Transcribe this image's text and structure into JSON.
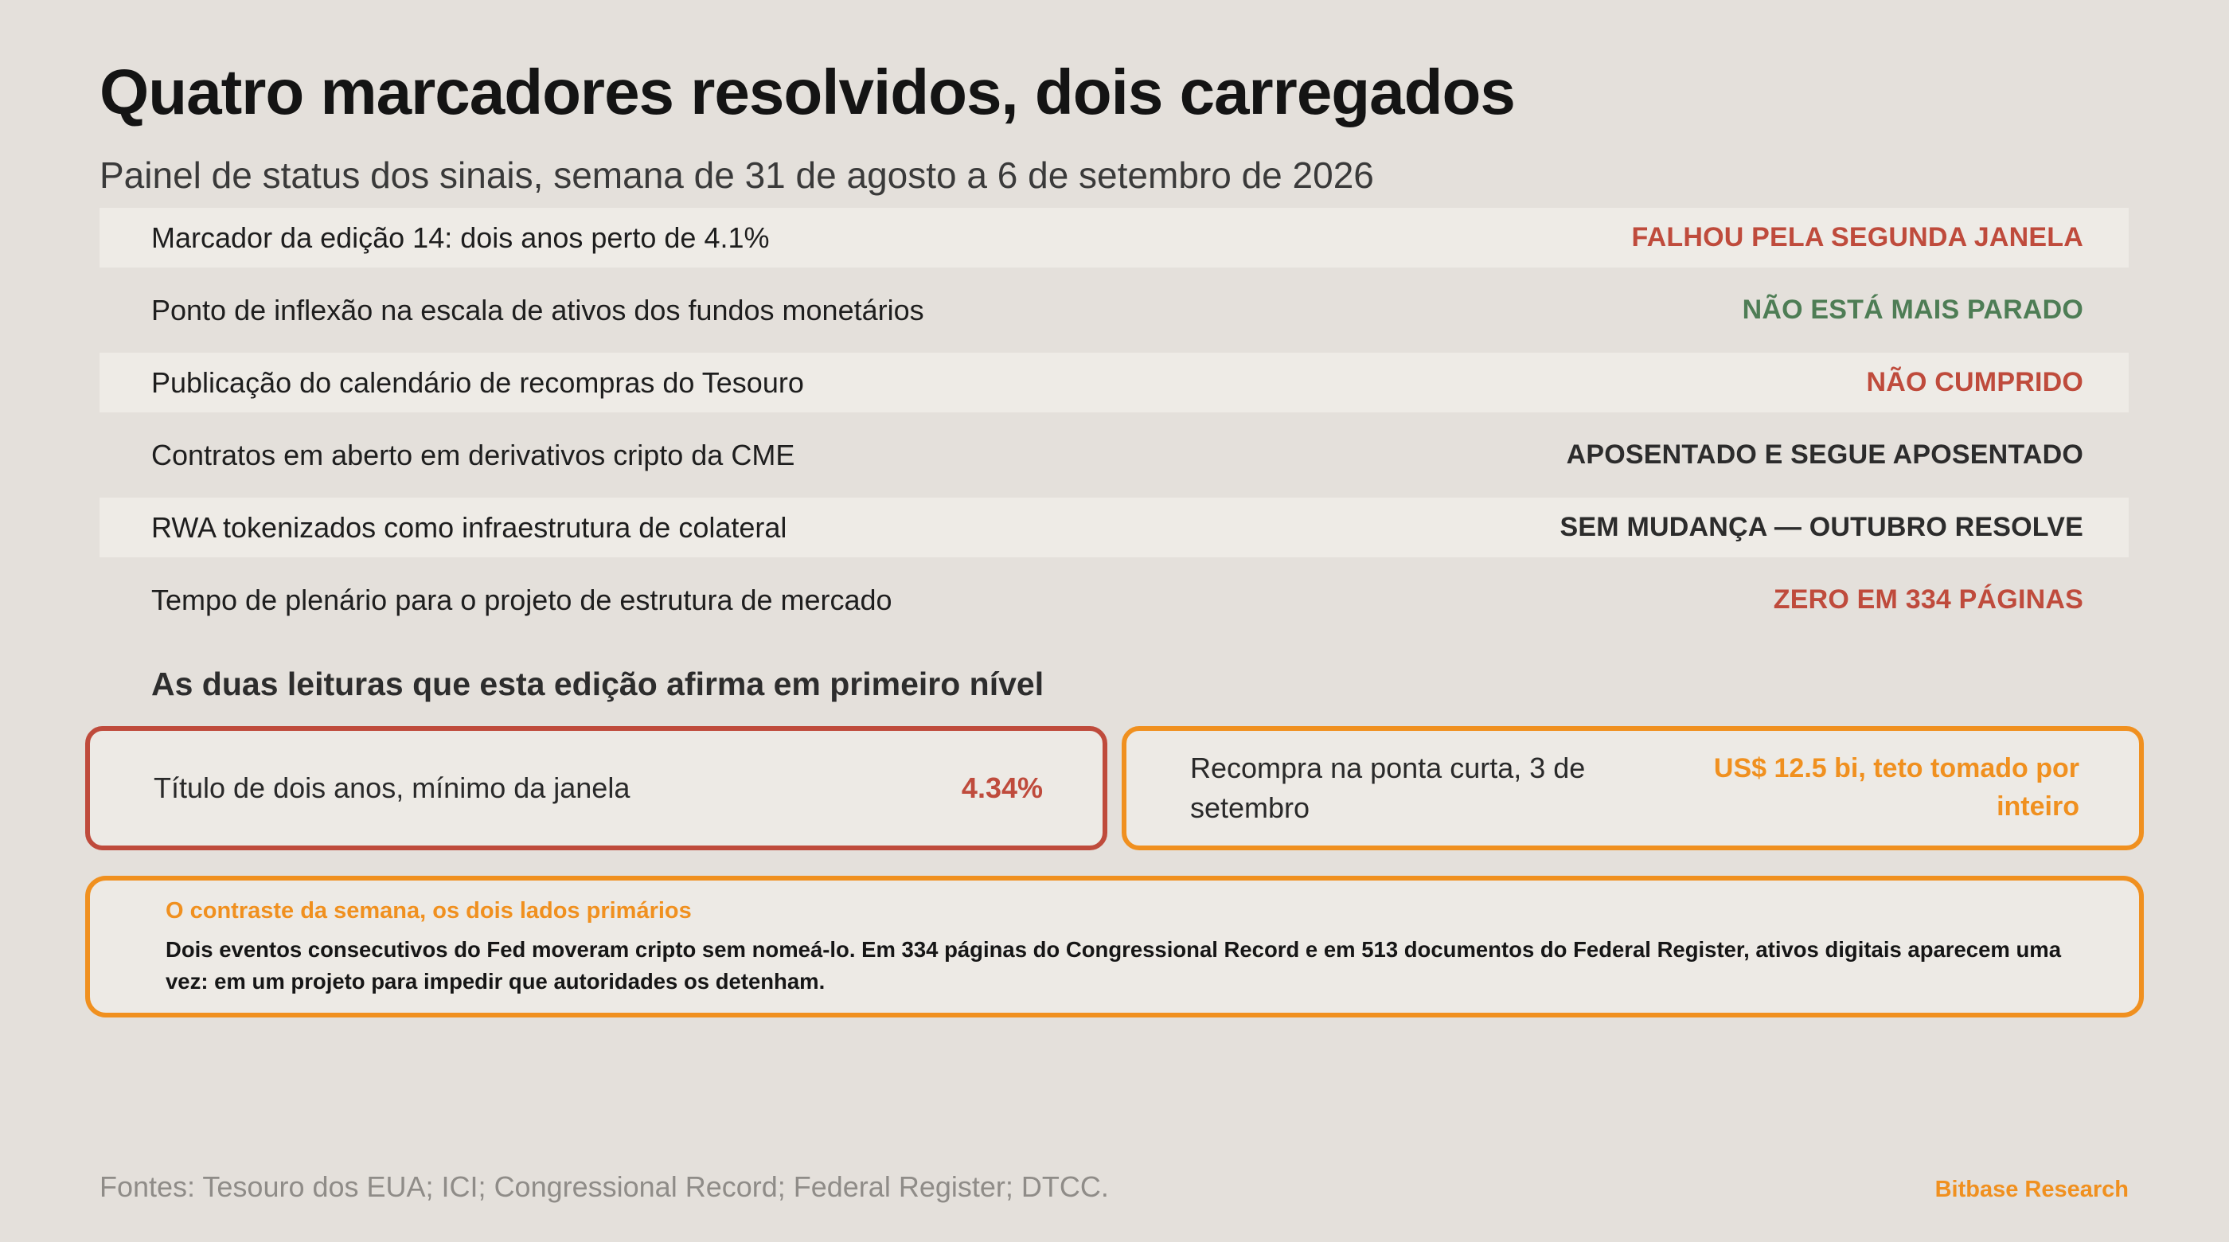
{
  "header": {
    "title": "Quatro marcadores resolvidos, dois carregados",
    "subtitle": "Painel de status dos sinais, semana de 31 de agosto a 6 de setembro de 2026"
  },
  "status_rows": [
    {
      "label": "Marcador da edição 14: dois anos perto de 4.1%",
      "value": "FALHOU PELA SEGUNDA JANELA",
      "color": "#bf4b3c"
    },
    {
      "label": "Ponto de inflexão na escala de ativos dos fundos monetários",
      "value": "NÃO ESTÁ MAIS PARADO",
      "color": "#4e7d55"
    },
    {
      "label": "Publicação do calendário de recompras do Tesouro",
      "value": "NÃO CUMPRIDO",
      "color": "#bf4b3c"
    },
    {
      "label": "Contratos em aberto em derivativos cripto da CME",
      "value": "APOSENTADO E SEGUE APOSENTADO",
      "color": "#2c2c2c"
    },
    {
      "label": "RWA tokenizados como infraestrutura de colateral",
      "value": "SEM MUDANÇA — OUTUBRO RESOLVE",
      "color": "#2c2c2c"
    },
    {
      "label": "Tempo de plenário para o projeto de estrutura de mercado",
      "value": "ZERO EM 334 PÁGINAS",
      "color": "#bf4b3c"
    }
  ],
  "readings": {
    "heading": "As duas leituras que esta edição afirma em primeiro nível",
    "left": {
      "label": "Título de dois anos, mínimo da janela",
      "value": "4.34%"
    },
    "right": {
      "label": "Recompra na ponta curta, 3 de setembro",
      "value": "US$ 12.5 bi, teto tomado por inteiro"
    }
  },
  "contrast": {
    "heading": "O contraste da semana, os dois lados primários",
    "body": "Dois eventos consecutivos do Fed moveram cripto sem nomeá-lo. Em 334 páginas do Congressional Record e em 513 documentos do Federal Register, ativos digitais aparecem uma vez: em um projeto para impedir que autoridades os detenham."
  },
  "footer": {
    "sources": "Fontes: Tesouro dos EUA; ICI; Congressional Record; Federal Register; DTCC.",
    "brand": "Bitbase Research"
  },
  "colors": {
    "background": "#e4e0db",
    "accent_red": "#bf4b3c",
    "accent_green": "#4e7d55",
    "accent_orange": "#f0901f"
  }
}
